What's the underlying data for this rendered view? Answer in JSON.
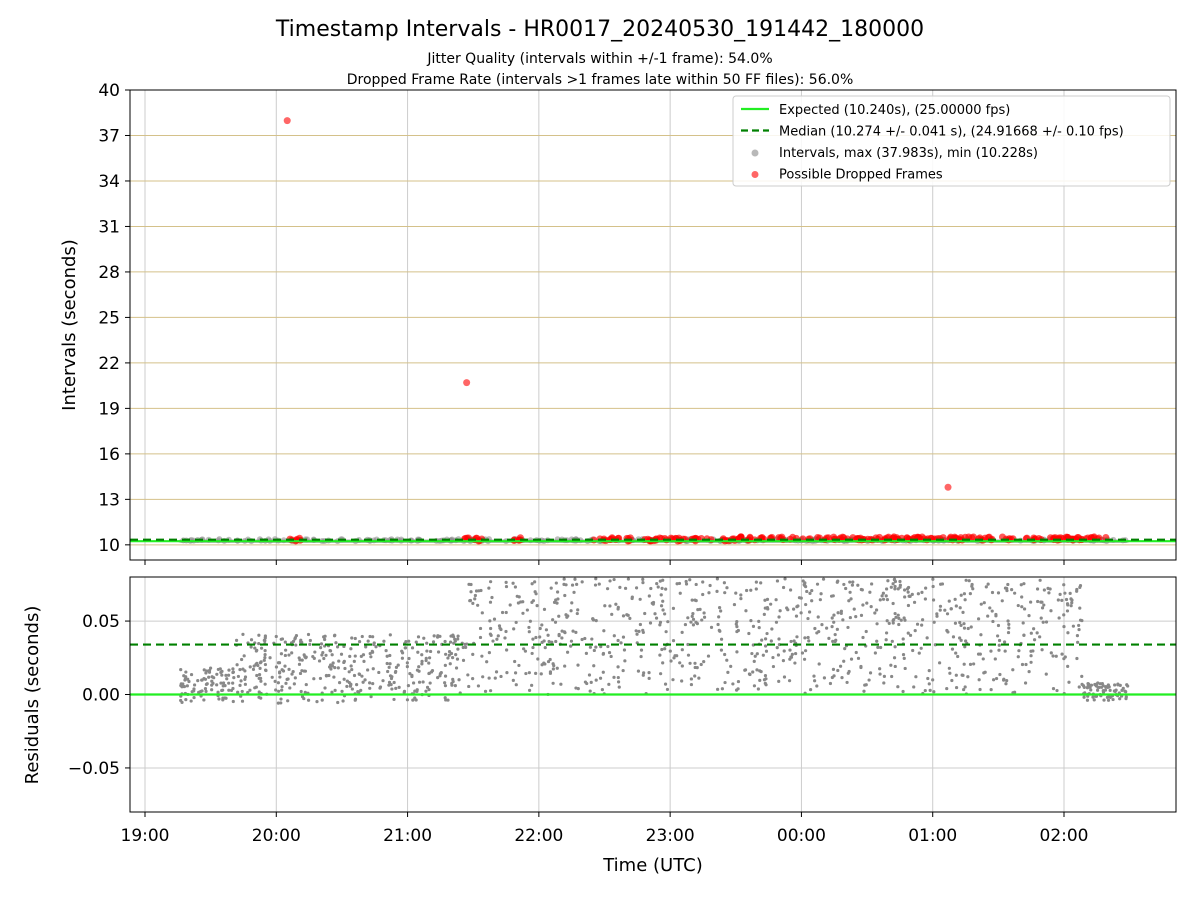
{
  "chart_data": [
    {
      "type": "scatter",
      "title": "Timestamp Intervals - HR0017_20240530_191442_180000",
      "subtitles": [
        "Jitter Quality (intervals within +/-1 frame): 54.0%",
        "Dropped Frame Rate (intervals >1 frames late within 50 FF files): 56.0%"
      ],
      "xlabel": "",
      "ylabel": "Intervals (seconds)",
      "ylim": [
        9,
        40
      ],
      "y_ticks": [
        "10",
        "13",
        "16",
        "19",
        "22",
        "25",
        "28",
        "31",
        "34",
        "37",
        "40"
      ],
      "grid": true,
      "legend_position": "top-right",
      "lines": [
        {
          "name": "Expected (10.240s), (25.00000 fps)",
          "y": 10.24,
          "color": "#22ee22",
          "style": "solid"
        },
        {
          "name": "Median (10.274 +/- 0.041 s), (24.91668 +/- 0.10 fps)",
          "y": 10.274,
          "color": "#008000",
          "style": "dashed"
        }
      ],
      "series": [
        {
          "name": "Intervals, max (37.983s), min (10.228s)",
          "color": "#888888",
          "x_range": [
            "19:15",
            "02:30"
          ],
          "y_approx": 10.27
        },
        {
          "name": "Possible Dropped Frames",
          "color": "#ff0000",
          "outliers": [
            {
              "x": "20:05",
              "y": 37.98
            },
            {
              "x": "21:27",
              "y": 20.7
            },
            {
              "x": "01:07",
              "y": 13.8
            }
          ]
        }
      ]
    },
    {
      "type": "scatter",
      "title": "",
      "xlabel": "Time (UTC)",
      "ylabel": "Residuals (seconds)",
      "ylim": [
        -0.08,
        0.08
      ],
      "y_ticks": [
        "−0.05",
        "0.00",
        "0.05"
      ],
      "x_ticks": [
        "19:00",
        "20:00",
        "21:00",
        "22:00",
        "23:00",
        "00:00",
        "01:00",
        "02:00"
      ],
      "grid": true,
      "lines": [
        {
          "name": "Expected",
          "y": 0.0,
          "color": "#22ee22",
          "style": "solid"
        },
        {
          "name": "Median",
          "y": 0.034,
          "color": "#008000",
          "style": "dashed"
        }
      ],
      "series": [
        {
          "name": "Residuals",
          "color": "#777777",
          "x_range": [
            "19:15",
            "02:30"
          ]
        }
      ]
    }
  ],
  "colors": {
    "grid_gold": "#d4c18a",
    "grid_gray": "#cccccc",
    "expected": "#22ee22",
    "median": "#008000",
    "interval": "#888888",
    "dropped": "#ff0000"
  }
}
